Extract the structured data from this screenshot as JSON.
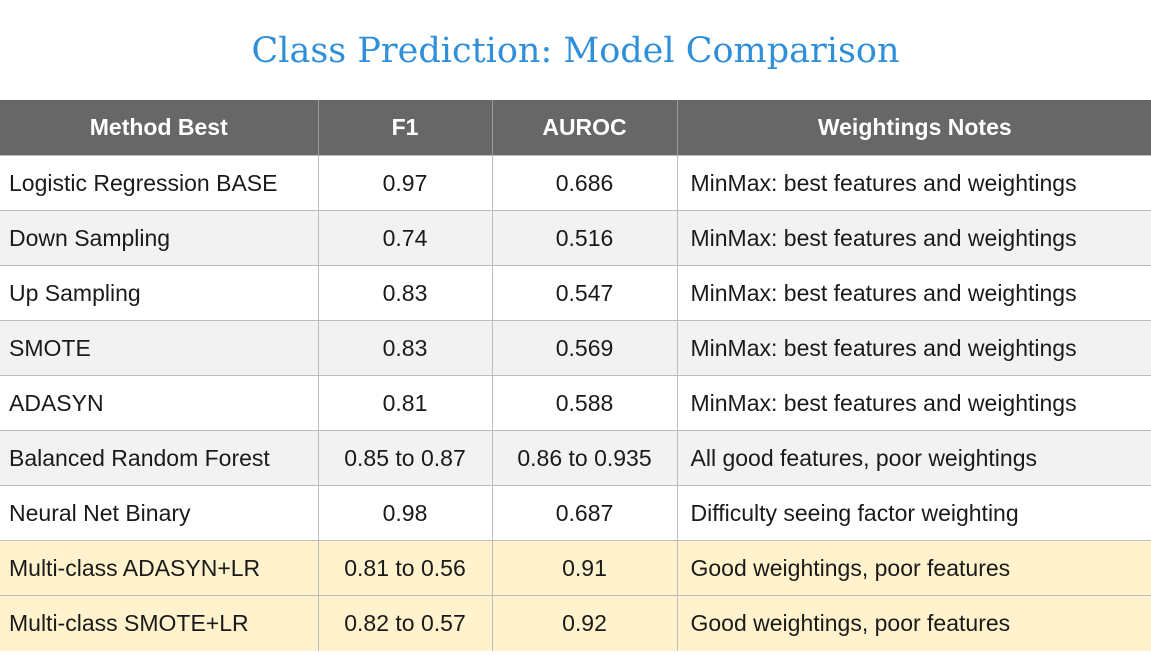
{
  "title": "Class Prediction: Model Comparison",
  "table": {
    "headers": [
      "Method Best",
      "F1",
      "AUROC",
      "Weightings Notes"
    ],
    "rows": [
      [
        "Logistic Regression BASE",
        "0.97",
        "0.686",
        "MinMax: best features and weightings"
      ],
      [
        "Down Sampling",
        "0.74",
        "0.516",
        "MinMax: best features and weightings"
      ],
      [
        "Up Sampling",
        "0.83",
        "0.547",
        "MinMax: best features and weightings"
      ],
      [
        "SMOTE",
        "0.83",
        "0.569",
        "MinMax: best features and weightings"
      ],
      [
        "ADASYN",
        "0.81",
        "0.588",
        "MinMax: best features and weightings"
      ],
      [
        "Balanced Random Forest",
        "0.85 to 0.87",
        "0.86 to 0.935",
        "All good features, poor weightings"
      ],
      [
        "Neural Net Binary",
        "0.98",
        "0.687",
        "Difficulty seeing factor weighting"
      ],
      [
        "Multi-class ADASYN+LR",
        "0.81 to 0.56",
        "0.91",
        "Good weightings, poor features"
      ],
      [
        "Multi-class SMOTE+LR",
        "0.82 to 0.57",
        "0.92",
        "Good weightings, poor features"
      ]
    ]
  },
  "colors": {
    "title": "#2f8fd8",
    "header_bg": "#676767",
    "row_alt_bg": "#f2f2f2",
    "highlight_bg": "#fff2cc"
  }
}
